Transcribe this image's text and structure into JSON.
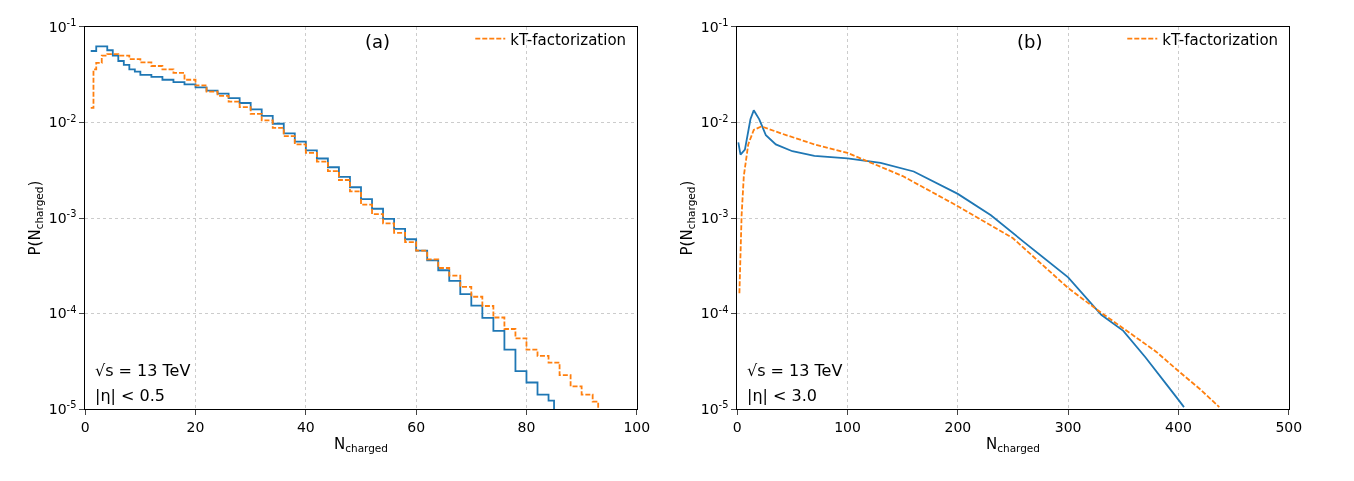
{
  "chart_data": [
    {
      "type": "step",
      "xlabel": "N$_{charged}$",
      "ylabel": "P(N$_{charged}$)",
      "log": "y",
      "grid": true,
      "legend": "top right",
      "xlim": [
        0,
        100
      ],
      "xticks": [
        0,
        20,
        40,
        60,
        80,
        100
      ],
      "ylim": [
        1e-05,
        0.1
      ],
      "yticks": [
        {
          "value": 1e-05,
          "label": "10$^{-5}$"
        },
        {
          "value": 0.0001,
          "label": "10$^{-4}$"
        },
        {
          "value": 0.001,
          "label": "10$^{-3}$"
        },
        {
          "value": 0.01,
          "label": "10$^{-2}$"
        },
        {
          "value": 0.1,
          "label": "10$^{-1}$"
        }
      ],
      "annotations": [
        "(a)",
        "√s = 13 TeV",
        "|η| < 0.5"
      ],
      "series": [
        {
          "color": "#1f77b4",
          "line_style": "solid",
          "x": [
            1,
            2,
            4,
            5,
            6,
            7,
            8,
            9,
            10,
            12,
            14,
            16,
            18,
            20,
            22,
            24,
            26,
            28,
            30,
            32,
            34,
            36,
            38,
            40,
            42,
            44,
            46,
            48,
            50,
            52,
            54,
            56,
            58,
            60,
            62,
            64,
            66,
            68,
            70,
            72,
            74,
            76,
            78,
            80,
            82,
            84,
            85
          ],
          "values": [
            0.056,
            0.0625,
            0.057,
            0.05,
            0.044,
            0.04,
            0.036,
            0.034,
            0.0315,
            0.03,
            0.028,
            0.0265,
            0.025,
            0.0233,
            0.0215,
            0.02,
            0.018,
            0.016,
            0.0137,
            0.0117,
            0.0097,
            0.0077,
            0.0063,
            0.0051,
            0.0042,
            0.0034,
            0.0027,
            0.0021,
            0.00158,
            0.00125,
            0.00098,
            0.00077,
            0.0006,
            0.000455,
            0.00036,
            0.000284,
            0.00022,
            0.00016,
            0.000121,
            9e-05,
            6.6e-05,
            4.2e-05,
            2.5e-05,
            1.9e-05,
            1.42e-05,
            1.23e-05,
            1e-05
          ]
        },
        {
          "name": "kT-factorization",
          "color": "#ff7f0e",
          "line_style": "dashed",
          "x": [
            1,
            1.5,
            2,
            3,
            4,
            6,
            8,
            10,
            12,
            14,
            16,
            18,
            20,
            22,
            24,
            26,
            28,
            30,
            32,
            34,
            36,
            38,
            40,
            42,
            44,
            46,
            48,
            50,
            52,
            54,
            56,
            58,
            60,
            62,
            64,
            66,
            68,
            70,
            72,
            74,
            76,
            78,
            80,
            82,
            84,
            86,
            88,
            90,
            92,
            93
          ],
          "values": [
            0.0142,
            0.036,
            0.042,
            0.05,
            0.052,
            0.05,
            0.046,
            0.0425,
            0.039,
            0.036,
            0.033,
            0.028,
            0.0244,
            0.021,
            0.019,
            0.0165,
            0.0145,
            0.0123,
            0.0105,
            0.0088,
            0.0072,
            0.0059,
            0.0048,
            0.0039,
            0.0031,
            0.0025,
            0.0019,
            0.00138,
            0.0011,
            0.00088,
            0.0007,
            0.00056,
            0.000455,
            0.00037,
            0.0003,
            0.00025,
            0.00019,
            0.00015,
            0.00012,
            9.1e-05,
            6.9e-05,
            5.5e-05,
            4.2e-05,
            3.6e-05,
            3.07e-05,
            2.27e-05,
            1.73e-05,
            1.42e-05,
            1.2e-05,
            1e-05
          ]
        }
      ]
    },
    {
      "type": "line",
      "xlabel": "N$_{charged}$",
      "ylabel": "P(N$_{charged}$)",
      "log": "y",
      "grid": true,
      "legend": "top right",
      "xlim": [
        0,
        500
      ],
      "xticks": [
        0,
        100,
        200,
        300,
        400,
        500
      ],
      "ylim": [
        1e-05,
        0.1
      ],
      "yticks": [
        {
          "value": 1e-05,
          "label": "10$^{-5}$"
        },
        {
          "value": 0.0001,
          "label": "10$^{-4}$"
        },
        {
          "value": 0.001,
          "label": "10$^{-3}$"
        },
        {
          "value": 0.01,
          "label": "10$^{-2}$"
        },
        {
          "value": 0.1,
          "label": "10$^{-1}$"
        }
      ],
      "annotations": [
        "(b)",
        "√s = 13 TeV",
        "|η| < 3.0"
      ],
      "series": [
        {
          "color": "#1f77b4",
          "line_style": "solid",
          "x": [
            1,
            3,
            7,
            12,
            15,
            20,
            26,
            35,
            50,
            70,
            100,
            130,
            160,
            200,
            230,
            260,
            300,
            330,
            350,
            370,
            390,
            400,
            405
          ],
          "values": [
            0.0062,
            0.0046,
            0.0052,
            0.0108,
            0.0134,
            0.0108,
            0.00735,
            0.0059,
            0.005,
            0.00448,
            0.00422,
            0.00377,
            0.00307,
            0.00179,
            0.00107,
            0.00056,
            0.000239,
            9.7e-05,
            6.6e-05,
            3.49e-05,
            1.76e-05,
            1.25e-05,
            1.05e-05
          ]
        },
        {
          "name": "kT-factorization",
          "color": "#ff7f0e",
          "line_style": "dashed",
          "x": [
            2,
            4,
            6,
            10,
            15,
            22,
            40,
            70,
            100,
            150,
            200,
            250,
            300,
            330,
            360,
            380,
            400,
            420,
            430,
            437
          ],
          "values": [
            0.000163,
            0.00107,
            0.00275,
            0.0059,
            0.00836,
            0.0091,
            0.00767,
            0.0059,
            0.0048,
            0.00275,
            0.00133,
            0.000614,
            0.000185,
            0.000102,
            5.8e-05,
            3.97e-05,
            2.5e-05,
            1.6e-05,
            1.25e-05,
            1.05e-05
          ]
        }
      ]
    }
  ]
}
